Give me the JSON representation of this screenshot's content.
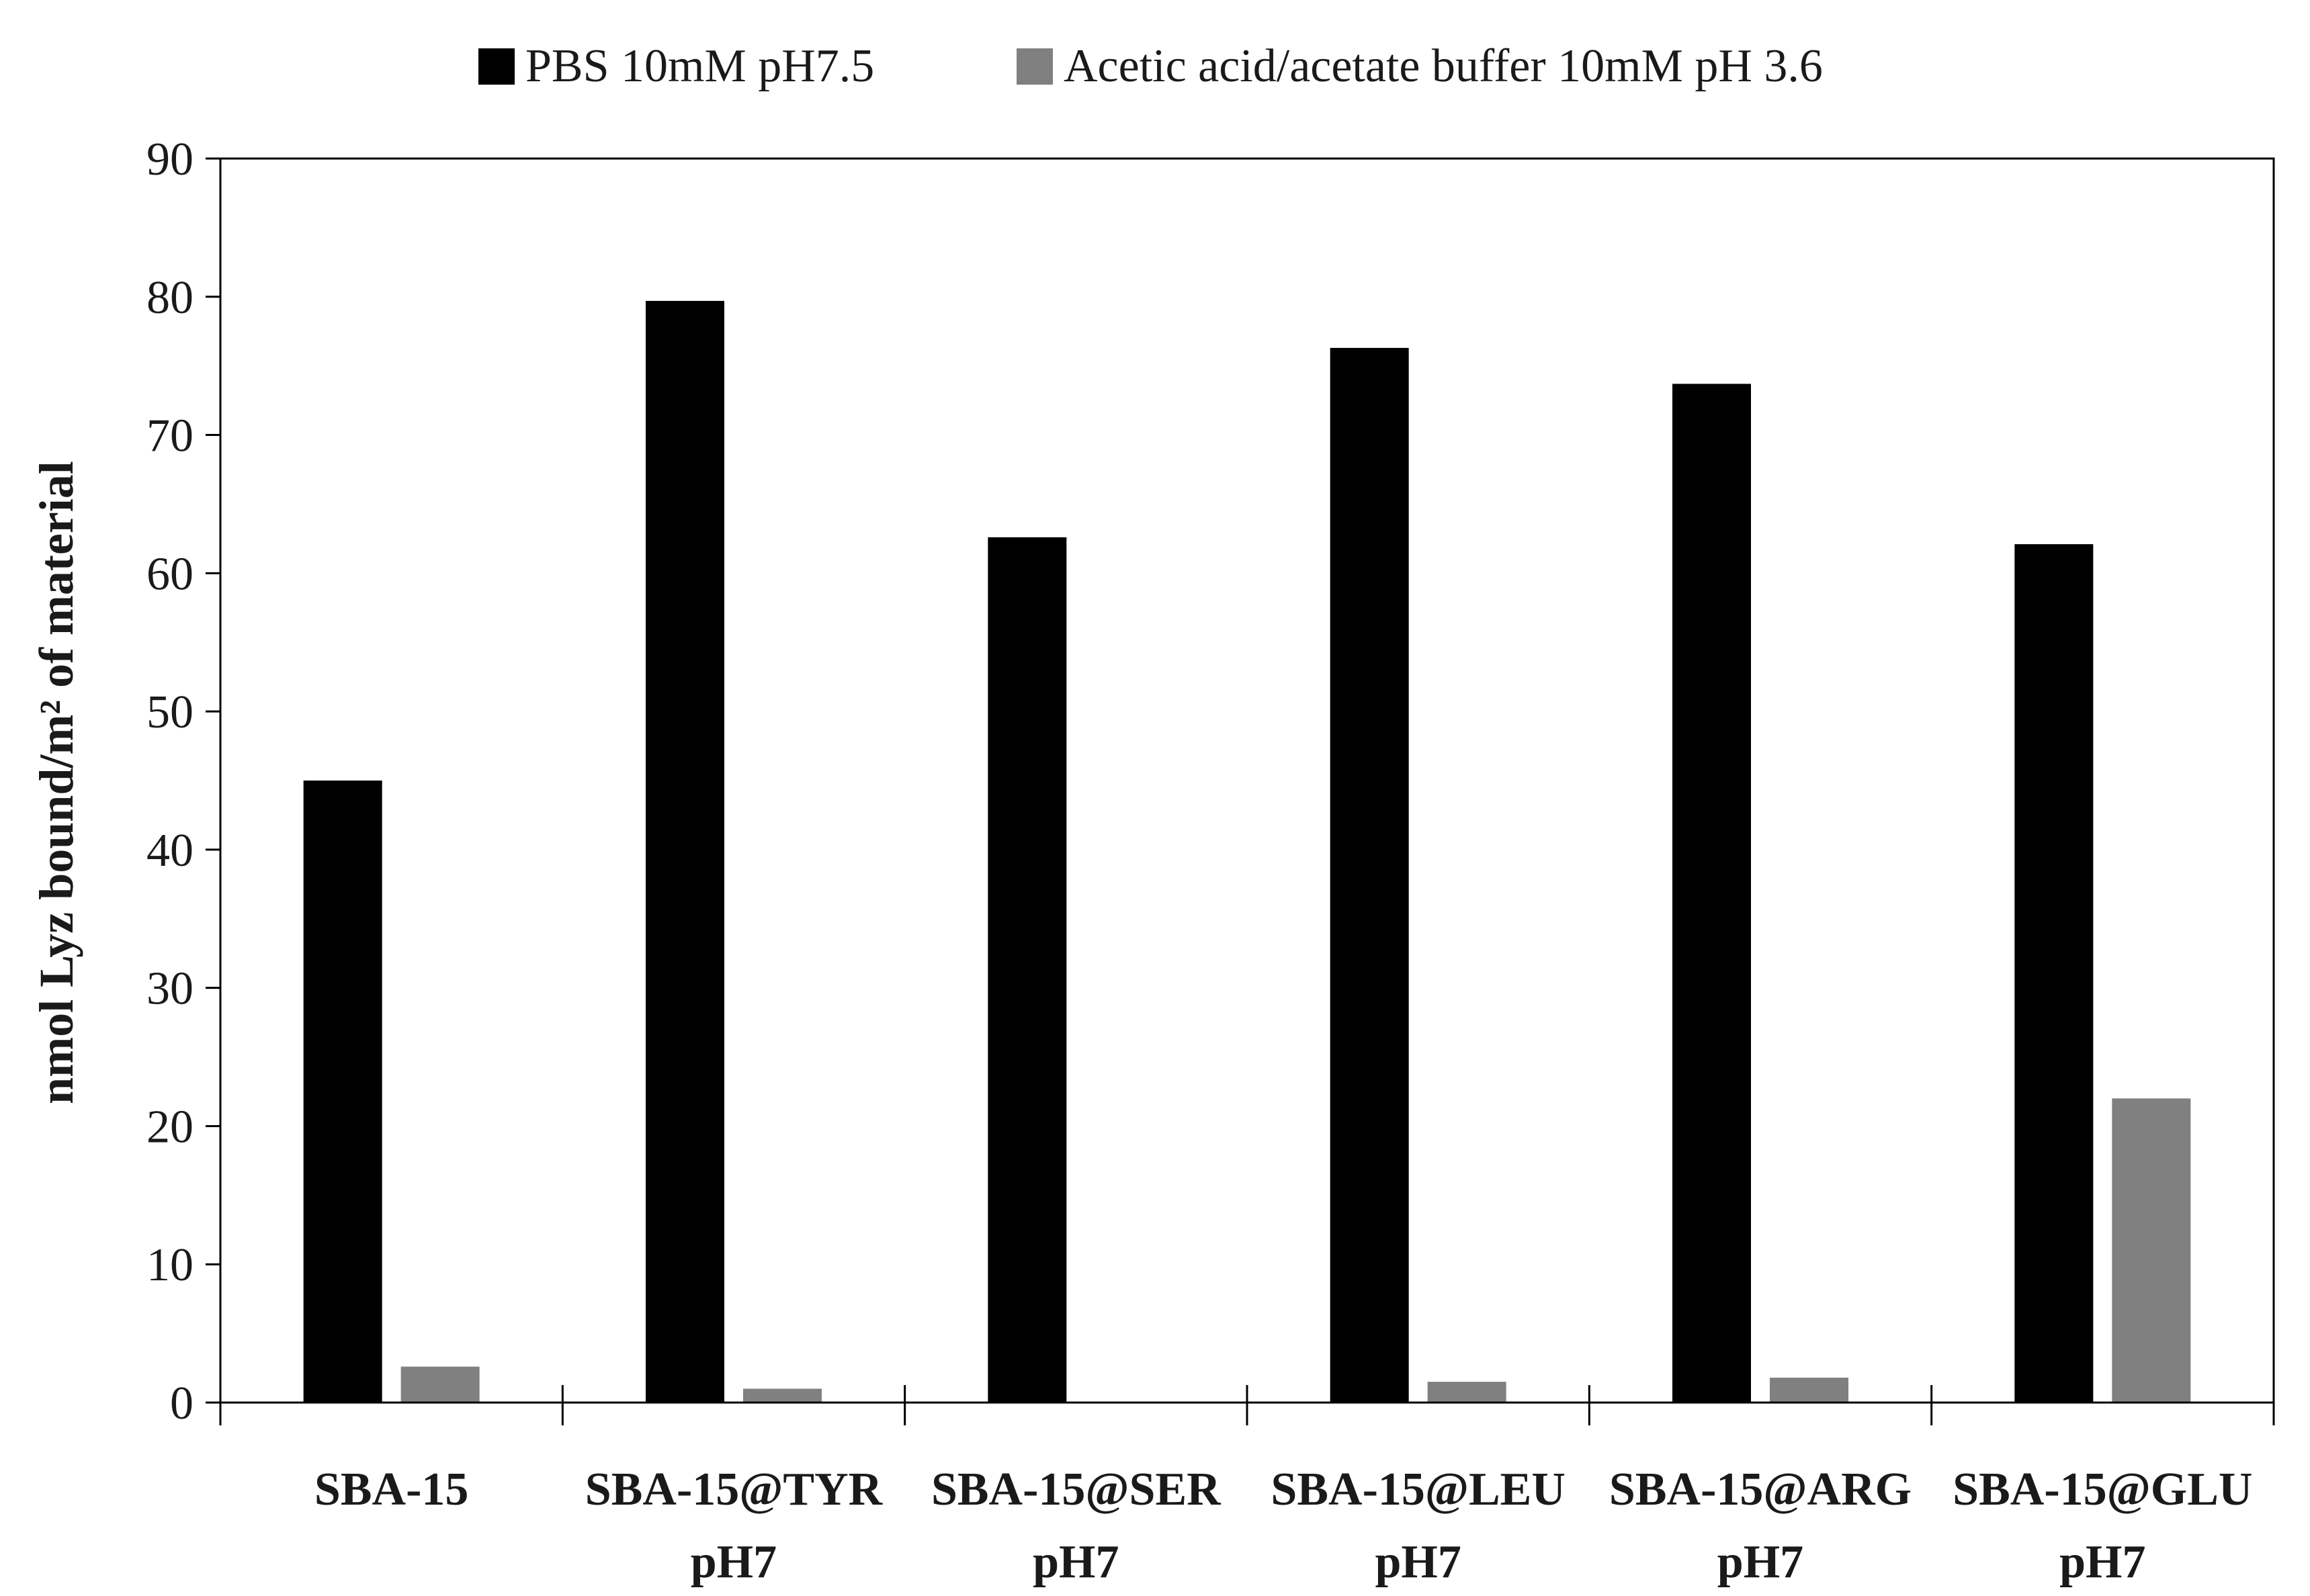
{
  "chart_data": {
    "type": "bar",
    "title": "",
    "xlabel": "",
    "ylabel": "nmol Lyz bound/m² of material",
    "ylim": [
      0,
      90
    ],
    "yticks": [
      0,
      10,
      20,
      30,
      40,
      50,
      60,
      70,
      80,
      90
    ],
    "grid": false,
    "legend_position": "top",
    "categories": [
      [
        "SBA-15"
      ],
      [
        "SBA-15@TYR",
        "pH7"
      ],
      [
        "SBA-15@SER",
        "pH7"
      ],
      [
        "SBA-15@LEU",
        "pH7"
      ],
      [
        "SBA-15@ARG",
        "pH7"
      ],
      [
        "SBA-15@GLU",
        "pH7"
      ]
    ],
    "series": [
      {
        "name": "PBS 10mM pH7.5",
        "color": "#000000",
        "values": [
          45.0,
          79.7,
          62.6,
          76.3,
          73.7,
          62.1
        ]
      },
      {
        "name": "Acetic acid/acetate buffer 10mM pH 3.6",
        "color": "#808080",
        "values": [
          2.6,
          1.0,
          0.0,
          1.5,
          1.8,
          22.0
        ]
      }
    ]
  }
}
